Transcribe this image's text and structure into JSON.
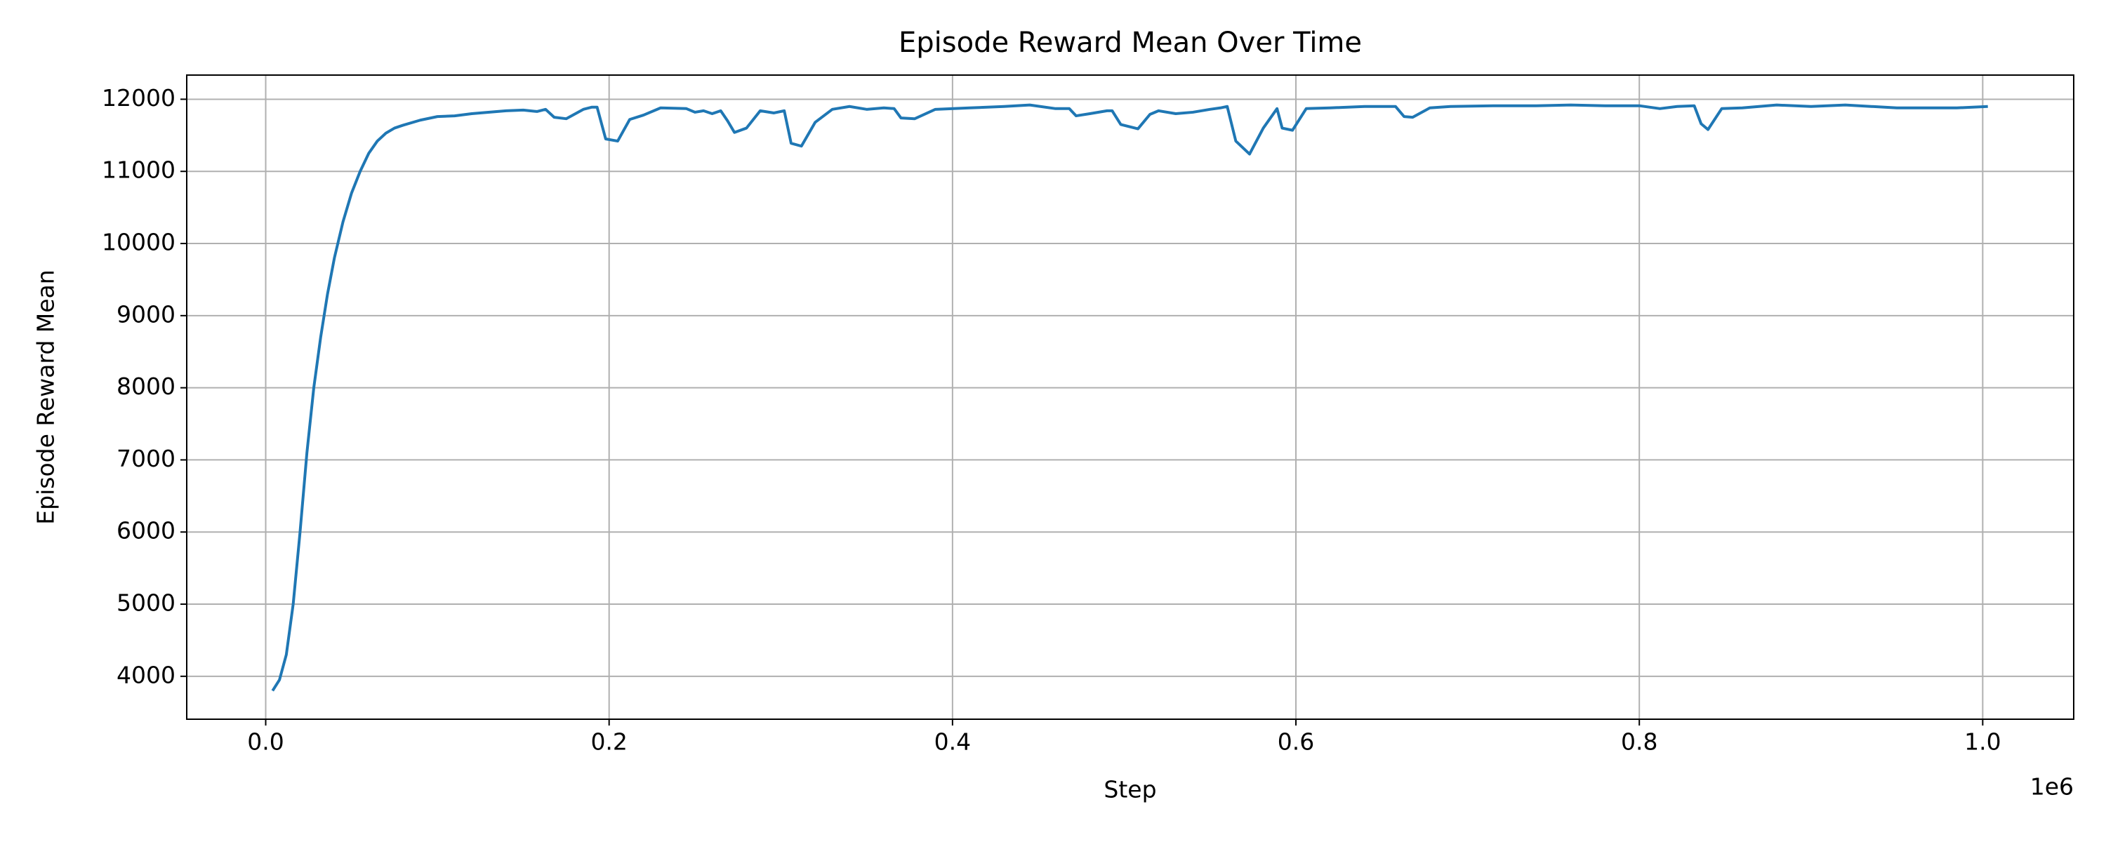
{
  "chart_data": {
    "type": "line",
    "title": "Episode Reward Mean Over Time",
    "xlabel": "Step",
    "ylabel": "Episode Reward Mean",
    "x_offset_label": "1e6",
    "xlim": [
      -46000,
      1053000
    ],
    "ylim": [
      3405,
      12335
    ],
    "xticks": [
      {
        "value": 0,
        "label": "0.0"
      },
      {
        "value": 200000,
        "label": "0.2"
      },
      {
        "value": 400000,
        "label": "0.4"
      },
      {
        "value": 600000,
        "label": "0.6"
      },
      {
        "value": 800000,
        "label": "0.8"
      },
      {
        "value": 1000000,
        "label": "1.0"
      }
    ],
    "yticks": [
      4000,
      5000,
      6000,
      7000,
      8000,
      9000,
      10000,
      11000,
      12000
    ],
    "grid": true,
    "series": [
      {
        "name": "Episode Reward Mean",
        "color": "#1f77b4",
        "x": [
          4000,
          8000,
          12000,
          16000,
          20000,
          24000,
          28000,
          32000,
          36000,
          40000,
          45000,
          50000,
          55000,
          60000,
          65000,
          70000,
          75000,
          80000,
          90000,
          100000,
          110000,
          120000,
          140000,
          150000,
          158000,
          163000,
          168000,
          175000,
          185000,
          190000,
          193000,
          198000,
          205000,
          212000,
          220000,
          230000,
          245000,
          250000,
          255000,
          260000,
          265000,
          269000,
          273000,
          280000,
          288000,
          296000,
          302000,
          306000,
          312000,
          320000,
          330000,
          340000,
          350000,
          360000,
          366000,
          370000,
          378000,
          390000,
          410000,
          430000,
          445000,
          460000,
          468000,
          472000,
          480000,
          490000,
          493000,
          498000,
          508000,
          515000,
          520000,
          530000,
          540000,
          550000,
          556000,
          560000,
          565000,
          573000,
          581000,
          589000,
          592000,
          598000,
          606000,
          620000,
          640000,
          658000,
          663000,
          668000,
          678000,
          690000,
          715000,
          740000,
          760000,
          780000,
          800000,
          812000,
          822000,
          832000,
          836000,
          840000,
          848000,
          860000,
          880000,
          900000,
          920000,
          935000,
          950000,
          970000,
          985000,
          1003000
        ],
        "values": [
          3800,
          3950,
          4300,
          5000,
          6000,
          7100,
          8000,
          8700,
          9300,
          9800,
          10300,
          10700,
          11000,
          11250,
          11420,
          11530,
          11600,
          11640,
          11710,
          11760,
          11770,
          11800,
          11840,
          11850,
          11830,
          11860,
          11750,
          11730,
          11860,
          11890,
          11890,
          11450,
          11420,
          11720,
          11780,
          11880,
          11870,
          11820,
          11840,
          11800,
          11840,
          11700,
          11540,
          11600,
          11840,
          11810,
          11840,
          11390,
          11350,
          11680,
          11860,
          11900,
          11860,
          11880,
          11870,
          11740,
          11730,
          11860,
          11880,
          11900,
          11920,
          11870,
          11870,
          11770,
          11800,
          11840,
          11840,
          11650,
          11590,
          11790,
          11840,
          11800,
          11820,
          11860,
          11880,
          11900,
          11420,
          11240,
          11600,
          11870,
          11600,
          11570,
          11870,
          11880,
          11900,
          11900,
          11760,
          11750,
          11880,
          11900,
          11910,
          11910,
          11920,
          11910,
          11910,
          11870,
          11900,
          11910,
          11660,
          11580,
          11870,
          11880,
          11920,
          11900,
          11920,
          11900,
          11880,
          11880,
          11880,
          11900
        ]
      }
    ]
  }
}
